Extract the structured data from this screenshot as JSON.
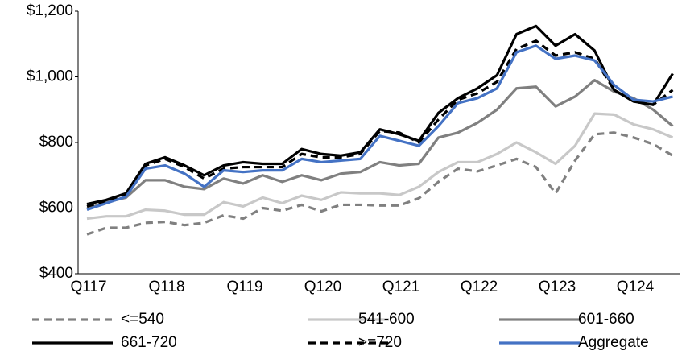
{
  "chart_data": {
    "type": "line",
    "categories": [
      "Q117",
      null,
      null,
      null,
      "Q118",
      null,
      null,
      null,
      "Q119",
      null,
      null,
      null,
      "Q120",
      null,
      null,
      null,
      "Q121",
      null,
      null,
      null,
      "Q122",
      null,
      null,
      null,
      "Q123",
      null,
      null,
      null,
      "Q124",
      null,
      null
    ],
    "ylim": [
      400,
      1200
    ],
    "yticks": [
      {
        "value": 400,
        "label": "$400"
      },
      {
        "value": 600,
        "label": "$600"
      },
      {
        "value": 800,
        "label": "$800"
      },
      {
        "value": 1000,
        "label": "$1,000"
      },
      {
        "value": 1200,
        "label": "$1,200"
      }
    ],
    "grid": false,
    "legend": "bottom",
    "series": [
      {
        "name": "<=540",
        "color": "#808080",
        "dashed": true,
        "values": [
          520,
          540,
          540,
          555,
          558,
          548,
          555,
          578,
          568,
          600,
          592,
          610,
          590,
          610,
          610,
          608,
          608,
          630,
          680,
          720,
          712,
          730,
          750,
          725,
          645,
          745,
          825,
          830,
          815,
          795,
          760
        ]
      },
      {
        "name": "541-600",
        "color": "#c8c8c8",
        "dashed": false,
        "values": [
          568,
          575,
          575,
          595,
          592,
          580,
          580,
          618,
          605,
          632,
          615,
          638,
          625,
          648,
          645,
          645,
          640,
          665,
          710,
          740,
          740,
          765,
          800,
          770,
          735,
          790,
          888,
          885,
          855,
          840,
          815
        ]
      },
      {
        "name": "601-660",
        "color": "#808080",
        "dashed": false,
        "values": [
          598,
          618,
          632,
          685,
          685,
          665,
          658,
          690,
          675,
          700,
          680,
          700,
          685,
          705,
          710,
          740,
          730,
          735,
          815,
          830,
          860,
          900,
          965,
          970,
          910,
          940,
          990,
          955,
          935,
          900,
          850
        ]
      },
      {
        "name": "661-720",
        "color": "#000000",
        "dashed": false,
        "values": [
          612,
          625,
          645,
          735,
          755,
          730,
          700,
          730,
          740,
          735,
          735,
          780,
          765,
          760,
          770,
          840,
          825,
          805,
          890,
          935,
          965,
          1005,
          1130,
          1155,
          1095,
          1130,
          1080,
          960,
          925,
          915,
          1010
        ]
      },
      {
        "name": ">=720",
        "color": "#000000",
        "dashed": true,
        "values": [
          605,
          622,
          640,
          730,
          750,
          725,
          690,
          720,
          725,
          725,
          725,
          765,
          755,
          755,
          765,
          835,
          830,
          800,
          870,
          930,
          950,
          985,
          1085,
          1110,
          1065,
          1075,
          1055,
          960,
          925,
          915,
          960
        ]
      },
      {
        "name": "Aggregate",
        "color": "#4472c4",
        "dashed": false,
        "values": [
          595,
          615,
          635,
          720,
          730,
          705,
          665,
          715,
          710,
          715,
          715,
          750,
          740,
          745,
          750,
          820,
          805,
          790,
          850,
          920,
          935,
          965,
          1075,
          1095,
          1055,
          1065,
          1050,
          975,
          930,
          925,
          940
        ]
      }
    ]
  }
}
